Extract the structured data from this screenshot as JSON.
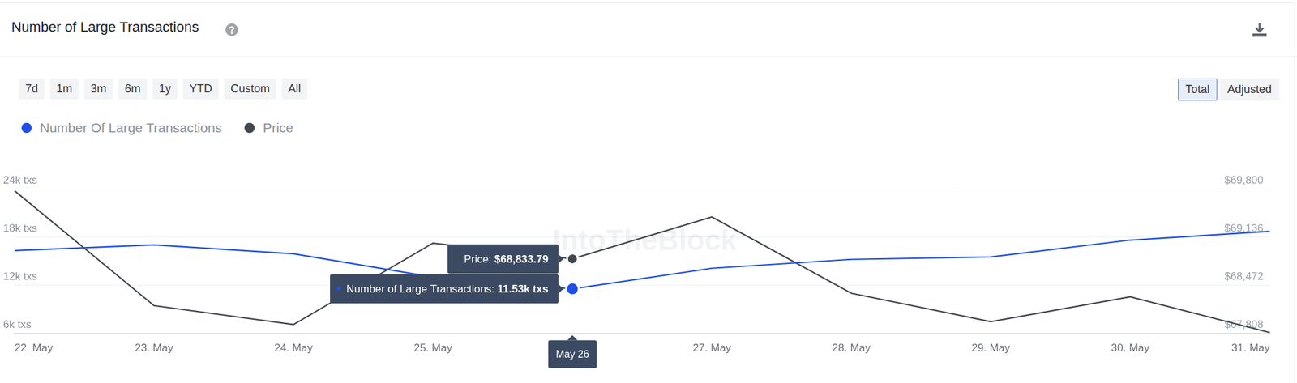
{
  "page": {
    "buttons": [
      "7d",
      "1m",
      "3m",
      "6m",
      "1y",
      "YTD",
      "Custom",
      "All"
    ],
    "toggle": [
      "Total",
      "Adjusted"
    ],
    "active_toggle": "Total"
  },
  "chart_data": {
    "type": "line",
    "title": "Number of Large Transactions",
    "categories": [
      "22. May",
      "23. May",
      "24. May",
      "25. May",
      "May 26",
      "27. May",
      "28. May",
      "29. May",
      "30. May",
      "31. May"
    ],
    "series": [
      {
        "name": "Number Of Large Transactions",
        "color": "#1f4fe8",
        "axis": "y",
        "values": [
          16300,
          17000,
          15900,
          13000,
          11530,
          14100,
          15200,
          15500,
          17600,
          18700
        ]
      },
      {
        "name": "Price",
        "color": "#42474e",
        "axis": "y2",
        "values": [
          69770,
          68190,
          67930,
          69050,
          68833.79,
          69410,
          68360,
          67970,
          68310,
          67820
        ]
      }
    ],
    "ylim": [
      6000,
      24000
    ],
    "yticks": [
      {
        "value": 6000,
        "label": "6k txs"
      },
      {
        "value": 12000,
        "label": "12k txs"
      },
      {
        "value": 18000,
        "label": "18k txs"
      },
      {
        "value": 24000,
        "label": "24k txs"
      }
    ],
    "y2lim": [
      67808,
      69800
    ],
    "y2ticks": [
      {
        "value": 67808,
        "label": "$67,808"
      },
      {
        "value": 68472,
        "label": "$68,472"
      },
      {
        "value": 69136,
        "label": "$69,136"
      },
      {
        "value": 69800,
        "label": "$69,800"
      }
    ],
    "grid": true,
    "legend": "top-left",
    "tick_label_hidden": null,
    "tooltip": {
      "index": 4,
      "date": "May 26",
      "items": [
        {
          "series": 1,
          "label": "Price:",
          "value_label": "$68,833.79"
        },
        {
          "series": 0,
          "label": "Number of Large Transactions:",
          "value_label": "11.53k txs"
        }
      ]
    },
    "watermark": "IntoTheBlock"
  }
}
